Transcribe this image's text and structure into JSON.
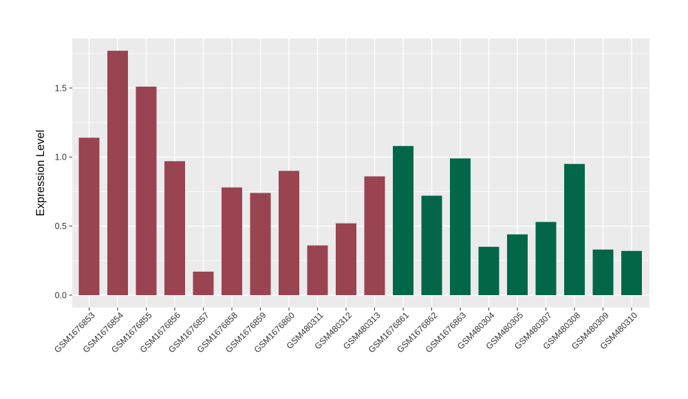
{
  "figure": {
    "background_color": "#FFFFFF",
    "panel_background_color": "#EBEBEB",
    "grid_color": "#FFFFFF",
    "axis_text_color": "#333333",
    "axis_title_color": "#000000",
    "tick_mark_color": "#333333"
  },
  "chart_data": {
    "type": "bar",
    "title": "",
    "xlabel": "",
    "ylabel": "Expression Level",
    "categories": [
      "GSM1676853",
      "GSM1676854",
      "GSM1676855",
      "GSM1676856",
      "GSM1676857",
      "GSM1676858",
      "GSM1676859",
      "GSM1676860",
      "GSM480311",
      "GSM480312",
      "GSM480313",
      "GSM1676861",
      "GSM1676862",
      "GSM1676863",
      "GSM480304",
      "GSM480305",
      "GSM480307",
      "GSM480308",
      "GSM480309",
      "GSM480310"
    ],
    "values": [
      1.14,
      1.77,
      1.51,
      0.97,
      0.17,
      0.78,
      0.74,
      0.9,
      0.36,
      0.52,
      0.86,
      1.08,
      0.72,
      0.99,
      0.35,
      0.44,
      0.53,
      0.95,
      0.33,
      0.32
    ],
    "groups": [
      "red",
      "red",
      "red",
      "red",
      "red",
      "red",
      "red",
      "red",
      "red",
      "red",
      "red",
      "green",
      "green",
      "green",
      "green",
      "green",
      "green",
      "green",
      "green",
      "green"
    ],
    "group_colors": {
      "red": "#9A4351",
      "green": "#016748"
    },
    "ylim": [
      -0.09,
      1.86
    ],
    "yticks": [
      0.0,
      0.5,
      1.0,
      1.5
    ],
    "ytick_labels": [
      "0.0",
      "0.5",
      "1.0",
      "1.5"
    ],
    "minor_yticks": [
      0.25,
      0.75,
      1.25,
      1.75
    ],
    "grid": true,
    "legend_position": "none",
    "x_label_rotation_deg": 45
  }
}
